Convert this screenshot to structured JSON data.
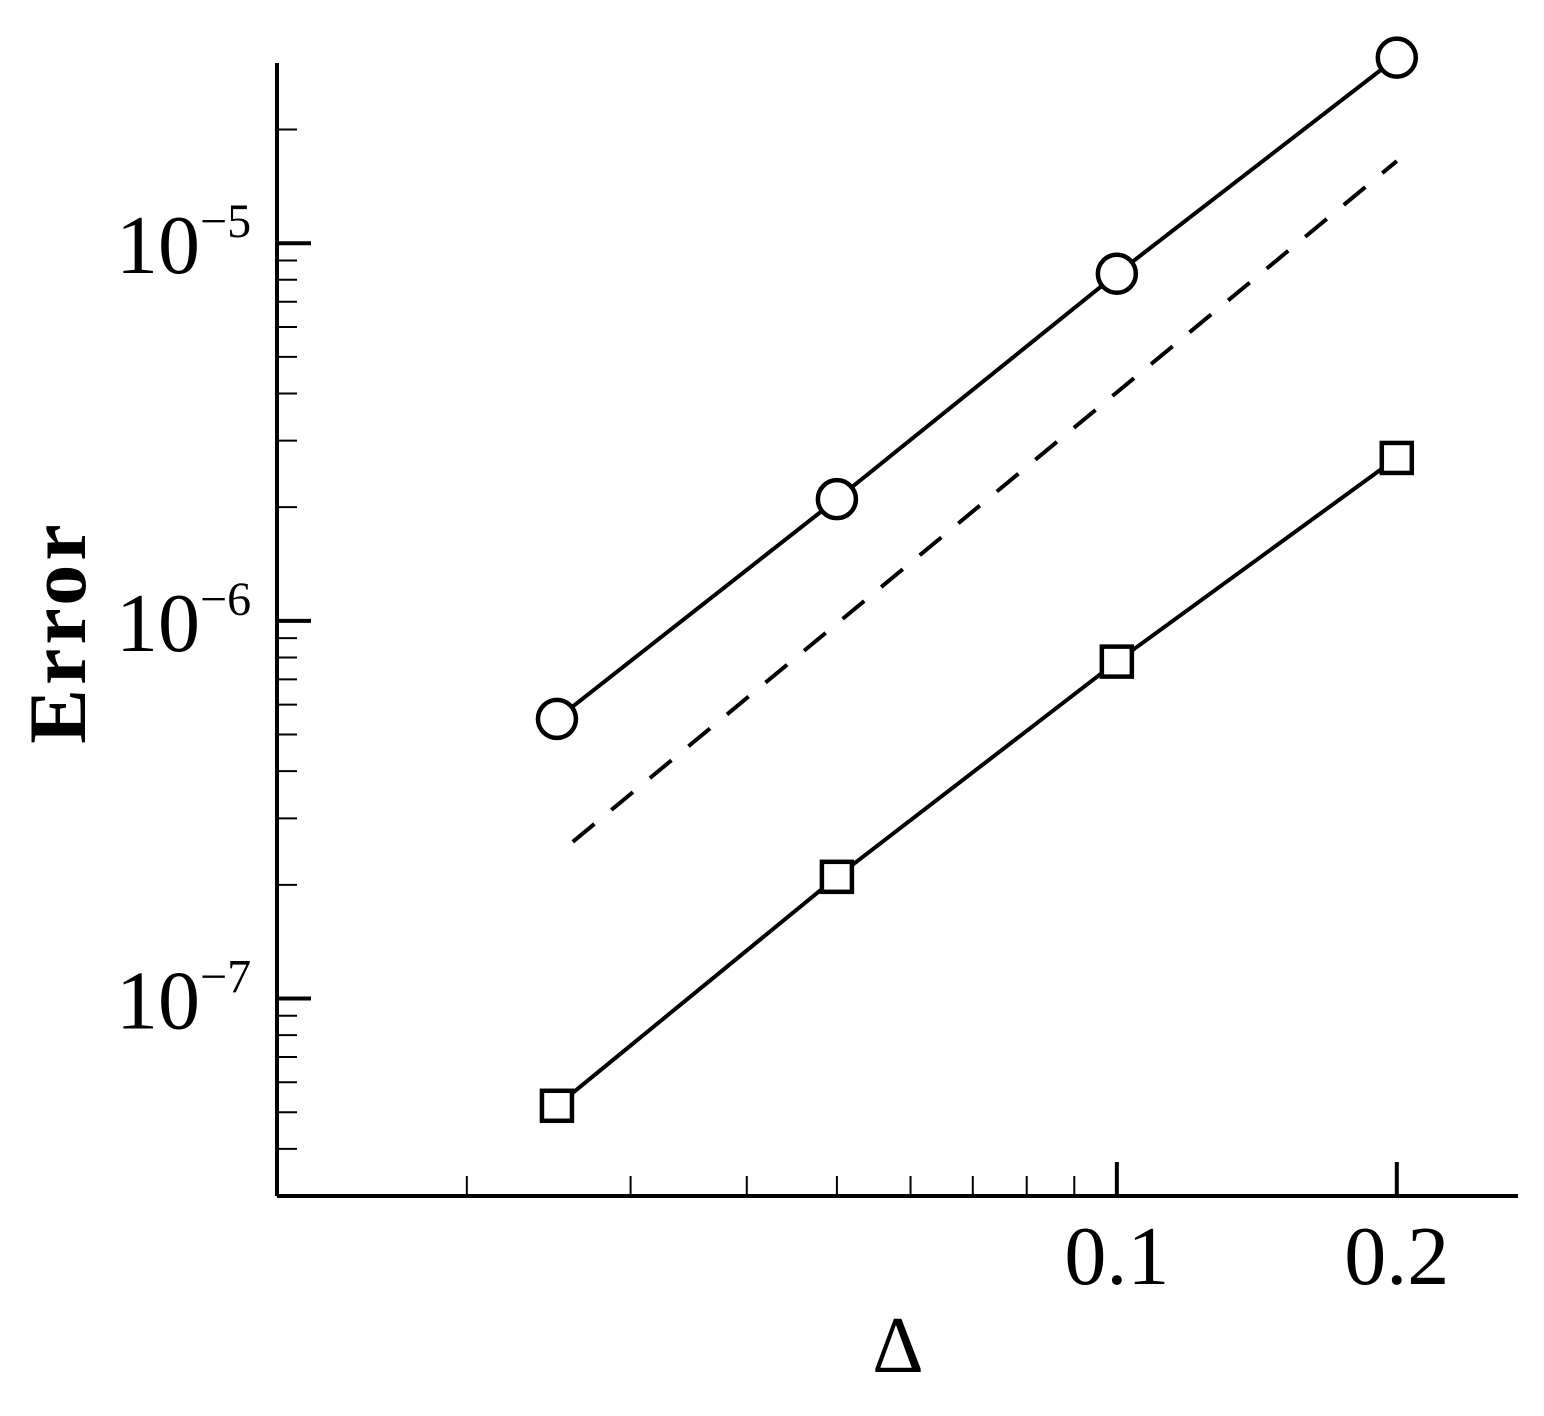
{
  "chart_data": {
    "type": "line",
    "title": "",
    "xlabel": "Δ",
    "ylabel": "Error",
    "xscale": "log",
    "yscale": "log",
    "xlim": [
      0.0125,
      0.27
    ],
    "ylim": [
      3e-08,
      3e-05
    ],
    "x_ticks": [
      {
        "value": 0.1,
        "label": "0.1"
      },
      {
        "value": 0.2,
        "label": "0.2"
      }
    ],
    "y_ticks": [
      {
        "value": 1e-05,
        "base": "10",
        "exp": "−5"
      },
      {
        "value": 1e-06,
        "base": "10",
        "exp": "−6"
      },
      {
        "value": 1e-07,
        "base": "10",
        "exp": "−7"
      }
    ],
    "grid": false,
    "legend": "none",
    "series": [
      {
        "marker": "circle",
        "line": "solid",
        "color": "#000000",
        "x": [
          0.025,
          0.05,
          0.1,
          0.2
        ],
        "y": [
          5.5e-07,
          2.1e-06,
          8.3e-06,
          3.1e-05
        ]
      },
      {
        "marker": "none",
        "line": "dashed",
        "color": "#000000",
        "x": [
          0.026,
          0.2
        ],
        "y": [
          2.6e-07,
          1.65e-05
        ]
      },
      {
        "marker": "square",
        "line": "solid",
        "color": "#000000",
        "x": [
          0.025,
          0.05,
          0.1,
          0.2
        ],
        "y": [
          5.2e-08,
          2.1e-07,
          7.8e-07,
          2.7e-06
        ]
      }
    ]
  }
}
